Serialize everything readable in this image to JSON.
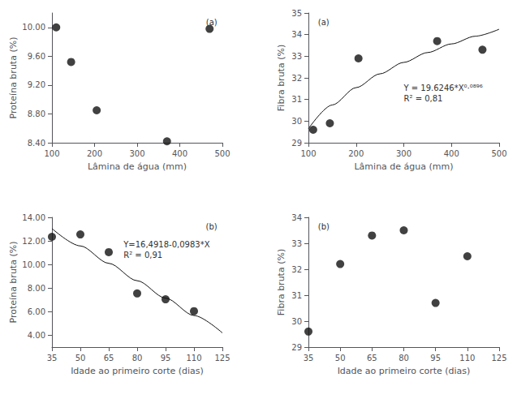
{
  "chart_data": [
    {
      "type": "scatter",
      "xlabel": "Lâmina de água (mm)",
      "ylabel": "Proteína bruta (%)",
      "annotations": [
        "(a)"
      ],
      "grid": false,
      "series": [
        {
          "type": "scatter",
          "color": "#111111",
          "x": [
            110,
            145,
            205,
            370,
            470
          ],
          "values": [
            10.0,
            9.52,
            8.85,
            8.42,
            9.98
          ]
        }
      ],
      "xlim": [
        100,
        500
      ],
      "xticks": [
        100,
        200,
        300,
        400,
        500
      ],
      "ylim": [
        8.4,
        10.2
      ],
      "yticks": [
        {
          "value": 8.4,
          "label": "8.40"
        },
        {
          "value": 8.8,
          "label": "8.80"
        },
        {
          "value": 9.2,
          "label": "9.20"
        },
        {
          "value": 9.6,
          "label": "9.60"
        },
        {
          "value": 10.0,
          "label": "10.00"
        }
      ]
    },
    {
      "type": "scatter",
      "xlabel": "Lâmina de água (mm)",
      "ylabel": "Fibra bruta (%)",
      "annotations": [
        "(a)",
        "Y = 19.6246*X⁰·⁰⁸⁹⁶\nR² = 0,81"
      ],
      "grid": false,
      "series": [
        {
          "type": "line",
          "color": "#111111",
          "x": [
            100,
            150,
            200,
            250,
            300,
            350,
            400,
            450,
            500
          ],
          "values": [
            29.6484,
            30.7453,
            31.5481,
            32.1852,
            32.7153,
            33.1703,
            33.5695,
            33.9257,
            34.2475
          ]
        },
        {
          "type": "scatter",
          "color": "#111111",
          "x": [
            110,
            145,
            205,
            370,
            465
          ],
          "values": [
            29.6,
            29.9,
            32.9,
            33.7,
            33.3
          ]
        }
      ],
      "xlim": [
        100,
        500
      ],
      "xticks": [
        100,
        200,
        300,
        400,
        500
      ],
      "ylim": [
        29,
        35
      ],
      "yticks": [
        29,
        30,
        31,
        32,
        33,
        34,
        35
      ]
    },
    {
      "type": "scatter",
      "xlabel": "Idade ao primeiro corte (dias)",
      "ylabel": "Proteína bruta (%)",
      "annotations": [
        "(b)",
        "Y=16,4918-0,0983*X\nR² = 0,91"
      ],
      "grid": false,
      "series": [
        {
          "type": "line",
          "color": "#111111",
          "x": [
            35,
            50,
            65,
            80,
            95,
            110,
            125
          ],
          "values": [
            13.0513,
            11.5768,
            10.1023,
            8.6278,
            7.1533,
            5.6788,
            4.2043
          ]
        },
        {
          "type": "scatter",
          "color": "#111111",
          "x": [
            35,
            50,
            65,
            80,
            95,
            110
          ],
          "values": [
            12.35,
            12.55,
            11.05,
            7.55,
            7.05,
            6.05
          ]
        }
      ],
      "xlim": [
        35,
        125
      ],
      "xticks": [
        35,
        50,
        65,
        80,
        95,
        110,
        125
      ],
      "ylim": [
        3,
        14
      ],
      "yticks": [
        {
          "value": 4,
          "label": "4.00"
        },
        {
          "value": 6,
          "label": "6.00"
        },
        {
          "value": 8,
          "label": "8.00"
        },
        {
          "value": 10,
          "label": "10.00"
        },
        {
          "value": 12,
          "label": "12.00"
        },
        {
          "value": 14,
          "label": "14.00"
        }
      ]
    },
    {
      "type": "scatter",
      "xlabel": "Idade ao primeiro corte (dias)",
      "ylabel": "Fibra bruta (%)",
      "annotations": [
        "(b)"
      ],
      "grid": false,
      "series": [
        {
          "type": "scatter",
          "color": "#111111",
          "x": [
            35,
            50,
            65,
            80,
            95,
            110
          ],
          "values": [
            29.6,
            32.2,
            33.3,
            33.5,
            30.7,
            32.5
          ]
        }
      ],
      "xlim": [
        35,
        125
      ],
      "xticks": [
        35,
        50,
        65,
        80,
        95,
        110,
        125
      ],
      "ylim": [
        29,
        34
      ],
      "yticks": [
        29,
        30,
        31,
        32,
        33,
        34
      ]
    }
  ]
}
